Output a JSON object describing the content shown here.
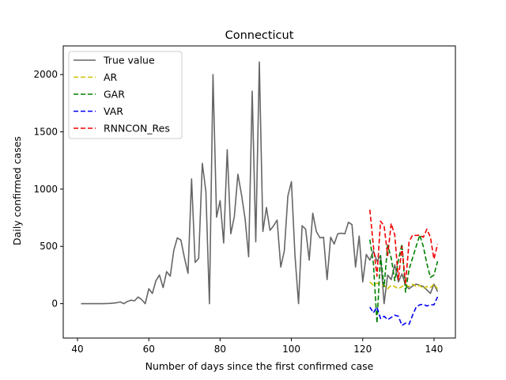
{
  "chart_data": {
    "type": "line",
    "title": "Connecticut",
    "xlabel": "Number of days since the first confirmed case",
    "ylabel": "Daily confirmed cases",
    "xlim": [
      36,
      146
    ],
    "ylim": [
      -300,
      2250
    ],
    "xticks": [
      40,
      60,
      80,
      100,
      120,
      140
    ],
    "yticks": [
      0,
      500,
      1000,
      1500,
      2000
    ],
    "grid": false,
    "legend_position": "top-left",
    "series": [
      {
        "name": "True value",
        "color": "#666666",
        "dashed": false,
        "x": [
          41,
          43,
          45,
          47,
          49,
          51,
          52,
          53,
          54,
          55,
          56,
          57,
          58,
          59,
          60,
          61,
          62,
          63,
          64,
          65,
          66,
          67,
          68,
          69,
          70,
          71,
          72,
          73,
          74,
          75,
          76,
          77,
          78,
          79,
          80,
          81,
          82,
          83,
          84,
          85,
          86,
          87,
          88,
          89,
          90,
          91,
          92,
          93,
          94,
          95,
          96,
          97,
          98,
          99,
          100,
          101,
          102,
          103,
          104,
          105,
          106,
          107,
          108,
          109,
          110,
          111,
          112,
          113,
          114,
          115,
          116,
          117,
          118,
          119,
          120,
          121,
          122,
          123,
          124,
          125,
          126,
          127,
          128,
          129,
          130,
          131,
          132,
          133,
          134,
          135,
          136,
          137,
          138,
          139,
          140,
          141
        ],
        "y": [
          0,
          0,
          0,
          0,
          2,
          8,
          15,
          0,
          20,
          30,
          25,
          58,
          35,
          0,
          130,
          90,
          200,
          250,
          140,
          280,
          240,
          465,
          575,
          555,
          400,
          265,
          1090,
          360,
          395,
          1225,
          980,
          0,
          2000,
          755,
          900,
          530,
          1345,
          610,
          760,
          1130,
          950,
          740,
          410,
          1855,
          540,
          2110,
          630,
          840,
          640,
          680,
          730,
          320,
          460,
          940,
          1065,
          420,
          0,
          680,
          650,
          380,
          790,
          630,
          575,
          580,
          210,
          580,
          520,
          610,
          615,
          610,
          710,
          690,
          320,
          590,
          190,
          430,
          380,
          460,
          370,
          420,
          0,
          250,
          210,
          340,
          190,
          260,
          165,
          130,
          155,
          170,
          160,
          150,
          120,
          90,
          170,
          105
        ]
      },
      {
        "name": "AR",
        "color": "#cfc000",
        "dashed": true,
        "x": [
          122,
          123,
          124,
          125,
          126,
          127,
          128,
          129,
          130,
          131,
          132,
          133,
          134,
          135,
          136,
          137,
          138,
          139,
          140,
          141
        ],
        "y": [
          190,
          160,
          180,
          170,
          160,
          130,
          160,
          150,
          130,
          150,
          160,
          150,
          170,
          150,
          160,
          130,
          150,
          140,
          170,
          130
        ]
      },
      {
        "name": "GAR",
        "color": "#008000",
        "dashed": true,
        "x": [
          122,
          123,
          124,
          125,
          126,
          127,
          128,
          129,
          130,
          131,
          132,
          133,
          134,
          135,
          136,
          137,
          138,
          139,
          140,
          141
        ],
        "y": [
          560,
          350,
          -170,
          420,
          150,
          510,
          400,
          200,
          380,
          520,
          100,
          300,
          400,
          500,
          600,
          500,
          350,
          230,
          250,
          370
        ]
      },
      {
        "name": "VAR",
        "color": "#0000ee",
        "dashed": true,
        "x": [
          122,
          123,
          124,
          125,
          126,
          127,
          128,
          129,
          130,
          131,
          132,
          133,
          134,
          135,
          136,
          137,
          138,
          139,
          140,
          141
        ],
        "y": [
          -30,
          -80,
          -30,
          -130,
          -110,
          -140,
          -120,
          -100,
          -110,
          -190,
          -170,
          -180,
          -100,
          -30,
          -10,
          -5,
          -20,
          -10,
          -10,
          60
        ]
      },
      {
        "name": "RNNCON_Res",
        "color": "#ee0000",
        "dashed": true,
        "x": [
          122,
          123,
          124,
          125,
          126,
          127,
          128,
          129,
          130,
          131,
          132,
          133,
          134,
          135,
          136,
          137,
          138,
          139,
          140,
          141
        ],
        "y": [
          820,
          500,
          240,
          720,
          680,
          420,
          700,
          600,
          210,
          500,
          170,
          540,
          600,
          595,
          600,
          580,
          650,
          580,
          390,
          520
        ]
      }
    ]
  }
}
